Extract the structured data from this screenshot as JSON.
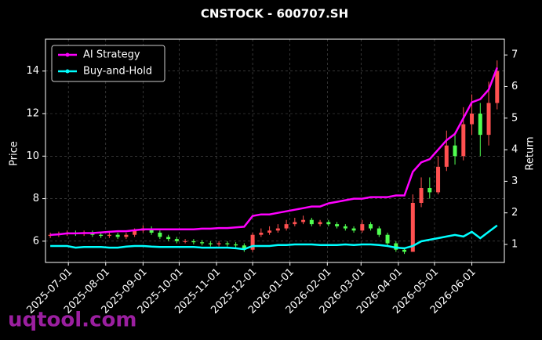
{
  "chart_data": {
    "type": "candlestick",
    "title": "CNSTOCK - 600707.SH",
    "ylabel": "Price",
    "y2label": "Return",
    "watermark": "uqtool.com",
    "x": [
      "2025-06-16",
      "2025-06-23",
      "2025-06-30",
      "2025-07-07",
      "2025-07-14",
      "2025-07-21",
      "2025-07-28",
      "2025-08-04",
      "2025-08-11",
      "2025-08-18",
      "2025-08-25",
      "2025-09-01",
      "2025-09-08",
      "2025-09-15",
      "2025-09-22",
      "2025-09-29",
      "2025-10-06",
      "2025-10-13",
      "2025-10-20",
      "2025-10-27",
      "2025-11-03",
      "2025-11-10",
      "2025-11-17",
      "2025-11-24",
      "2025-12-01",
      "2025-12-08",
      "2025-12-15",
      "2025-12-22",
      "2025-12-29",
      "2026-01-05",
      "2026-01-12",
      "2026-01-19",
      "2026-01-26",
      "2026-02-02",
      "2026-02-09",
      "2026-02-16",
      "2026-02-23",
      "2026-03-02",
      "2026-03-09",
      "2026-03-16",
      "2026-03-23",
      "2026-03-30",
      "2026-04-06",
      "2026-04-13",
      "2026-04-20",
      "2026-04-27",
      "2026-05-04",
      "2026-05-11",
      "2026-05-18",
      "2026-05-25",
      "2026-06-01",
      "2026-06-08",
      "2026-06-15",
      "2026-06-22"
    ],
    "open": [
      6.25,
      6.3,
      6.35,
      6.4,
      6.35,
      6.4,
      6.3,
      6.25,
      6.3,
      6.2,
      6.3,
      6.5,
      6.6,
      6.4,
      6.2,
      6.1,
      6.0,
      6.0,
      5.95,
      5.9,
      5.85,
      5.9,
      5.85,
      5.8,
      5.6,
      6.3,
      6.4,
      6.5,
      6.6,
      6.8,
      6.9,
      7.0,
      6.8,
      6.9,
      6.8,
      6.7,
      6.6,
      6.5,
      6.8,
      6.6,
      6.3,
      5.9,
      5.6,
      5.5,
      7.8,
      8.5,
      8.3,
      9.5,
      10.5,
      10.0,
      11.5,
      12.0,
      11.0,
      12.5
    ],
    "high": [
      6.4,
      6.45,
      6.5,
      6.5,
      6.5,
      6.5,
      6.4,
      6.4,
      6.4,
      6.4,
      6.6,
      6.75,
      6.7,
      6.5,
      6.3,
      6.2,
      6.1,
      6.1,
      6.05,
      6.0,
      6.0,
      6.0,
      5.95,
      5.9,
      6.4,
      6.6,
      6.7,
      6.8,
      7.0,
      7.1,
      7.2,
      7.1,
      7.0,
      7.0,
      6.9,
      6.8,
      6.7,
      7.0,
      6.9,
      6.7,
      6.4,
      6.0,
      5.7,
      8.2,
      9.0,
      9.0,
      10.0,
      11.2,
      11.0,
      12.3,
      12.9,
      12.5,
      13.5,
      14.5
    ],
    "low": [
      6.15,
      6.2,
      6.25,
      6.25,
      6.25,
      6.2,
      6.15,
      6.15,
      6.1,
      6.1,
      6.2,
      6.4,
      6.3,
      6.1,
      6.0,
      5.9,
      5.9,
      5.85,
      5.8,
      5.75,
      5.75,
      5.75,
      5.7,
      5.5,
      5.5,
      6.2,
      6.3,
      6.4,
      6.5,
      6.7,
      6.8,
      6.7,
      6.7,
      6.7,
      6.6,
      6.5,
      6.4,
      6.4,
      6.5,
      6.2,
      5.8,
      5.5,
      5.4,
      5.5,
      7.6,
      8.0,
      8.2,
      9.3,
      9.6,
      9.8,
      11.0,
      10.0,
      10.5,
      12.2
    ],
    "close": [
      6.3,
      6.35,
      6.4,
      6.35,
      6.4,
      6.3,
      6.25,
      6.3,
      6.2,
      6.3,
      6.5,
      6.6,
      6.4,
      6.2,
      6.1,
      6.0,
      6.0,
      5.95,
      5.9,
      5.85,
      5.9,
      5.85,
      5.8,
      5.6,
      6.3,
      6.4,
      6.5,
      6.6,
      6.8,
      6.9,
      7.0,
      6.8,
      6.9,
      6.8,
      6.7,
      6.6,
      6.5,
      6.8,
      6.6,
      6.3,
      5.9,
      5.6,
      5.5,
      7.8,
      8.5,
      8.3,
      9.5,
      10.5,
      10.0,
      11.5,
      12.0,
      11.0,
      12.5,
      14.0
    ],
    "up_color": "#ff5050",
    "down_color": "#50ff50",
    "series": [
      {
        "name": "AI Strategy",
        "color": "#ff00ff",
        "axis": "y2",
        "values": [
          1.3,
          1.32,
          1.35,
          1.35,
          1.36,
          1.36,
          1.38,
          1.4,
          1.42,
          1.42,
          1.45,
          1.48,
          1.48,
          1.48,
          1.48,
          1.48,
          1.48,
          1.48,
          1.5,
          1.5,
          1.52,
          1.52,
          1.54,
          1.56,
          1.9,
          1.95,
          1.95,
          2.0,
          2.05,
          2.1,
          2.15,
          2.2,
          2.2,
          2.3,
          2.35,
          2.4,
          2.45,
          2.45,
          2.5,
          2.5,
          2.5,
          2.55,
          2.55,
          3.3,
          3.6,
          3.7,
          4.0,
          4.3,
          4.5,
          5.0,
          5.5,
          5.6,
          5.9,
          6.6
        ]
      },
      {
        "name": "Buy-and-Hold",
        "color": "#00ffff",
        "axis": "y2",
        "values": [
          0.95,
          0.95,
          0.95,
          0.9,
          0.92,
          0.92,
          0.92,
          0.9,
          0.9,
          0.93,
          0.95,
          0.95,
          0.93,
          0.92,
          0.92,
          0.92,
          0.92,
          0.92,
          0.9,
          0.9,
          0.9,
          0.9,
          0.88,
          0.85,
          0.95,
          0.95,
          0.95,
          0.98,
          0.98,
          1.0,
          1.0,
          1.0,
          0.98,
          0.98,
          0.98,
          1.0,
          0.98,
          1.0,
          1.0,
          0.98,
          0.95,
          0.9,
          0.88,
          0.95,
          1.1,
          1.15,
          1.2,
          1.25,
          1.3,
          1.25,
          1.4,
          1.2,
          1.4,
          1.6
        ]
      }
    ],
    "xlim": [
      "2025-06-12",
      "2026-06-28"
    ],
    "xticks": [
      "2025-07-01",
      "2025-08-01",
      "2025-09-01",
      "2025-10-01",
      "2025-11-01",
      "2025-12-01",
      "2026-01-01",
      "2026-02-01",
      "2026-03-01",
      "2026-04-01",
      "2026-05-01",
      "2026-06-01"
    ],
    "ylim": [
      5,
      15.5
    ],
    "yticks": [
      6,
      8,
      10,
      12,
      14
    ],
    "y2lim": [
      0.43,
      7.5
    ],
    "y2ticks": [
      1,
      2,
      3,
      4,
      5,
      6,
      7
    ],
    "grid": true,
    "legend": "upper left"
  }
}
